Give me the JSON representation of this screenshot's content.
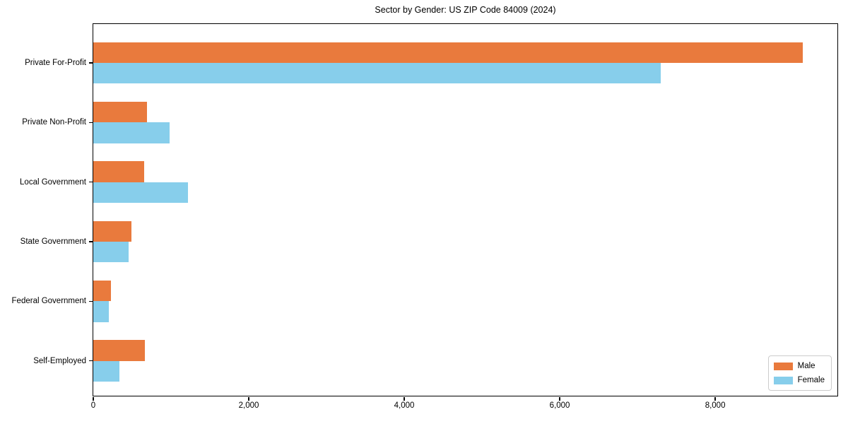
{
  "chart_data": {
    "type": "bar",
    "orientation": "horizontal",
    "title": "Sector by Gender: US ZIP Code 84009 (2024)",
    "categories": [
      "Private For-Profit",
      "Private Non-Profit",
      "Local Government",
      "State Government",
      "Federal Government",
      "Self-Employed"
    ],
    "series": [
      {
        "name": "Male",
        "color": "#e97a3d",
        "values": [
          9130,
          690,
          650,
          490,
          225,
          665
        ]
      },
      {
        "name": "Female",
        "color": "#87ceeb",
        "values": [
          7300,
          980,
          1220,
          455,
          200,
          335
        ]
      }
    ],
    "xlabel": "",
    "ylabel": "",
    "xlim": [
      0,
      9590
    ],
    "xticks": [
      0,
      2000,
      4000,
      6000,
      8000
    ],
    "xtick_labels": [
      "0",
      "2,000",
      "4,000",
      "6,000",
      "8,000"
    ],
    "grid": false,
    "legend_position": "lower right",
    "background_color": "#ffffff",
    "axis_color": "#000000"
  }
}
